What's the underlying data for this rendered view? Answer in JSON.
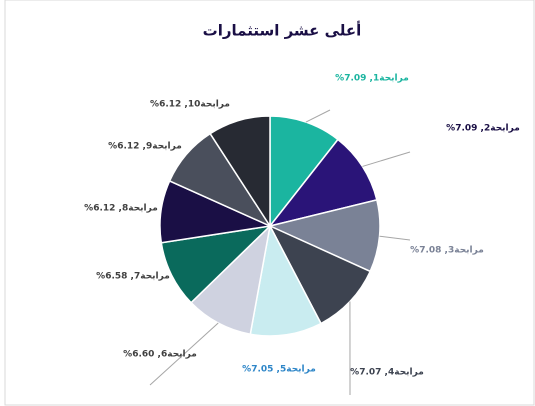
{
  "chart_data": {
    "type": "pie",
    "title": "أعلى عشر استثمارات",
    "values": [
      7.09,
      7.09,
      7.08,
      7.07,
      7.05,
      6.6,
      6.58,
      6.12,
      6.12,
      6.12
    ],
    "value_labels": [
      "مرابحة1, 7.09%",
      "مرابحة2, 7.09%",
      "مرابحة3, 7.08%",
      "مرابحة4, 7.07%",
      "مرابحة5, 7.05%",
      "مرابحة6, 6.60%",
      "مرابحة7, 6.58%",
      "مرابحة8, 6.12%",
      "مرابحة9, 6.12%",
      "مرابحة10, 6.12%"
    ],
    "colors": [
      "#1bb5a0",
      "#2a1478",
      "#7a8296",
      "#3d4350",
      "#c9ecf0",
      "#cfd2e0",
      "#0a6a5c",
      "#1a0f45",
      "#4a4f5c",
      "#272a33"
    ],
    "label_colors": [
      "#1bb5a0",
      "#1a0f45",
      "#7a8296",
      "#3d4350",
      "#2e86c8",
      "#404040",
      "#404040",
      "#404040",
      "#404040",
      "#404040"
    ]
  }
}
